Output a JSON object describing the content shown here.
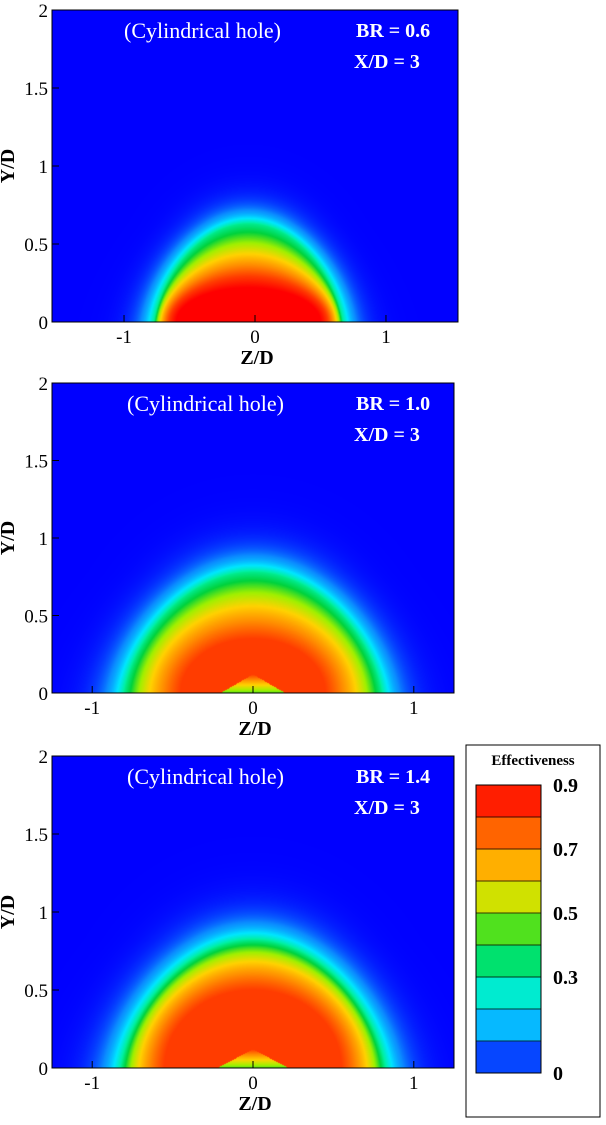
{
  "figure": {
    "colorbar": {
      "title": "Effectiveness",
      "min": 0,
      "max": 0.9,
      "levels": 9,
      "tick_labels": [
        "0.9",
        "0.7",
        "0.5",
        "0.3",
        "0"
      ],
      "tick_values": [
        0.9,
        0.7,
        0.5,
        0.3,
        0
      ],
      "colormap": [
        "#0000ff",
        "#0b8cff",
        "#00e6ff",
        "#00f0a0",
        "#00d23c",
        "#a0f000",
        "#ffd200",
        "#ff8c00",
        "#ff3c00",
        "#ff0000"
      ]
    }
  },
  "chart_data": [
    {
      "type": "heatmap",
      "annotation": "(Cylindrical hole)",
      "br_label": "BR = 0.6",
      "xd_label": "X/D = 3",
      "xlabel": "Z/D",
      "ylabel": "Y/D",
      "xlim": [
        -1.55,
        1.55
      ],
      "ylim": [
        0,
        2
      ],
      "x_ticks": [
        "-1",
        "0",
        "1"
      ],
      "x_tick_values": [
        -1,
        0,
        1
      ],
      "y_ticks": [
        "0",
        "0.5",
        "1",
        "1.5",
        "2"
      ],
      "y_tick_values": [
        0,
        0.5,
        1,
        1.5,
        2
      ],
      "blob": {
        "center_z": -0.05,
        "half_width": 0.72,
        "height": 0.63,
        "peak": 0.9,
        "core_height": 0.22,
        "core_half_width": 0.55,
        "foot_gap": 0
      }
    },
    {
      "type": "heatmap",
      "annotation": "(Cylindrical hole)",
      "br_label": "BR = 1.0",
      "xd_label": "X/D = 3",
      "xlabel": "Z/D",
      "ylabel": "Y/D",
      "xlim": [
        -1.25,
        1.25
      ],
      "ylim": [
        0,
        2
      ],
      "x_ticks": [
        "-1",
        "0",
        "1"
      ],
      "x_tick_values": [
        -1,
        0,
        1
      ],
      "y_ticks": [
        "0",
        "0.5",
        "1",
        "1.5",
        "2"
      ],
      "y_tick_values": [
        0,
        0.5,
        1,
        1.5,
        2
      ],
      "blob": {
        "center_z": 0.0,
        "half_width": 0.8,
        "height": 0.78,
        "peak": 0.8,
        "core_height": 0.35,
        "core_half_width": 0.45,
        "foot_gap": 0.2
      }
    },
    {
      "type": "heatmap",
      "annotation": "(Cylindrical hole)",
      "br_label": "BR = 1.4",
      "xd_label": "X/D = 3",
      "xlabel": "Z/D",
      "ylabel": "Y/D",
      "xlim": [
        -1.25,
        1.25
      ],
      "ylim": [
        0,
        2
      ],
      "x_ticks": [
        "-1",
        "0",
        "1"
      ],
      "x_tick_values": [
        -1,
        0,
        1
      ],
      "y_ticks": [
        "0",
        "0.5",
        "1",
        "1.5",
        "2"
      ],
      "y_tick_values": [
        0,
        0.5,
        1,
        1.5,
        2
      ],
      "blob": {
        "center_z": 0.0,
        "half_width": 0.82,
        "height": 0.82,
        "peak": 0.8,
        "core_height": 0.5,
        "core_half_width": 0.55,
        "foot_gap": 0.22
      }
    }
  ]
}
